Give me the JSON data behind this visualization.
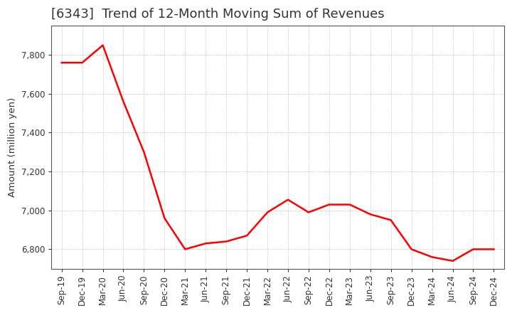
{
  "title": "[6343]  Trend of 12-Month Moving Sum of Revenues",
  "ylabel": "Amount (million yen)",
  "line_color": "#FF0000",
  "line_width": 1.8,
  "background_color": "#FFFFFF",
  "grid_color": "#999999",
  "title_color": "#333333",
  "labels": [
    "Sep-19",
    "Dec-19",
    "Mar-20",
    "Jun-20",
    "Sep-20",
    "Dec-20",
    "Mar-21",
    "Jun-21",
    "Sep-21",
    "Dec-21",
    "Mar-22",
    "Jun-22",
    "Sep-22",
    "Dec-22",
    "Mar-23",
    "Jun-23",
    "Sep-23",
    "Dec-23",
    "Mar-24",
    "Jun-24",
    "Sep-24",
    "Dec-24"
  ],
  "values": [
    7760,
    7760,
    7850,
    7560,
    7300,
    6960,
    6800,
    6830,
    6840,
    6870,
    6990,
    7055,
    6990,
    7030,
    7030,
    6980,
    6950,
    6800,
    6760,
    6740,
    6800,
    6800
  ],
  "ylim_min": 6700,
  "ylim_max": 7950,
  "yticks": [
    6800,
    7000,
    7200,
    7400,
    7600,
    7800
  ],
  "title_fontsize": 13,
  "tick_fontsize": 8.5,
  "ylabel_fontsize": 9.5
}
